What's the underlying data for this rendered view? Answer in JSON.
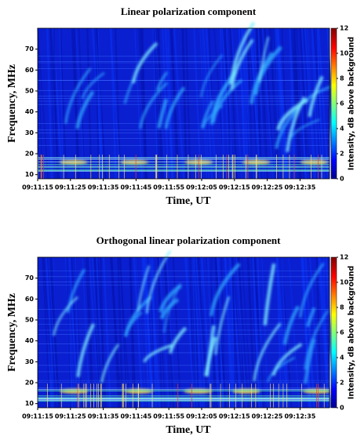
{
  "chart_data": [
    {
      "type": "spectrogram",
      "title": "Linear polarization component",
      "xlabel": "Time, UT",
      "ylabel": "Frequency, MHz",
      "xlim": [
        "09:11:15",
        "09:12:44"
      ],
      "xticks": [
        "09:11:15",
        "09:11:25",
        "09:11:35",
        "09:11:45",
        "09:11:55",
        "09:12:05",
        "09:12:15",
        "09:12:25",
        "09:12:35"
      ],
      "ylim": [
        8,
        80
      ],
      "yticks": [
        10,
        20,
        30,
        40,
        50,
        60,
        70
      ],
      "clim": [
        0,
        12
      ],
      "cticks": [
        0,
        2,
        4,
        6,
        8,
        10,
        12
      ],
      "clabel": "Intensity, dB above background",
      "colormap": "jet"
    },
    {
      "type": "spectrogram",
      "title": "Orthogonal linear polarization component",
      "xlabel": "Time, UT",
      "ylabel": "Frequency, MHz",
      "xlim": [
        "09:11:15",
        "09:12:44"
      ],
      "xticks": [
        "09:11:15",
        "09:11:25",
        "09:11:35",
        "09:11:45",
        "09:11:55",
        "09:12:05",
        "09:12:15",
        "09:12:25",
        "09:12:35"
      ],
      "ylim": [
        8,
        80
      ],
      "yticks": [
        10,
        20,
        30,
        40,
        50,
        60,
        70
      ],
      "clim": [
        0,
        12
      ],
      "cticks": [
        0,
        2,
        4,
        6,
        8,
        10,
        12
      ],
      "clabel": "Intensity, dB above background",
      "colormap": "jet"
    }
  ]
}
